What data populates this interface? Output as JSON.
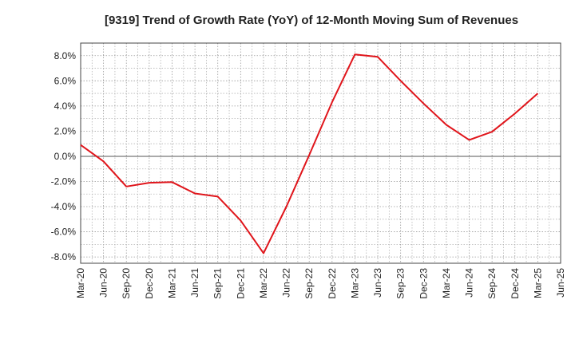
{
  "chart_data": {
    "type": "line",
    "title": "[9319]  Trend of Growth Rate (YoY) of 12-Month Moving Sum of Revenues",
    "xlabel": "",
    "ylabel": "",
    "categories": [
      "Mar-20",
      "Jun-20",
      "Sep-20",
      "Dec-20",
      "Mar-21",
      "Jun-21",
      "Sep-21",
      "Dec-21",
      "Mar-22",
      "Jun-22",
      "Sep-22",
      "Dec-22",
      "Mar-23",
      "Jun-23",
      "Sep-23",
      "Dec-23",
      "Mar-24",
      "Jun-24",
      "Sep-24",
      "Dec-24",
      "Mar-25",
      "Jun-25"
    ],
    "y_tick_values": [
      -8,
      -6,
      -4,
      -2,
      0,
      2,
      4,
      6,
      8
    ],
    "y_tick_labels": [
      "-8.0%",
      "-6.0%",
      "-4.0%",
      "-2.0%",
      "0.0%",
      "2.0%",
      "4.0%",
      "6.0%",
      "8.0%"
    ],
    "ylim": [
      -8.5,
      9.0
    ],
    "grid": true,
    "series": [
      {
        "color": "#e0151b",
        "values": [
          0.9,
          -0.4,
          -2.4,
          -2.1,
          -2.05,
          -2.95,
          -3.2,
          -5.1,
          -7.7,
          -4.0,
          0.1,
          4.3,
          8.1,
          7.9,
          6.0,
          4.2,
          2.5,
          1.3,
          1.95,
          3.4,
          5.0,
          null
        ]
      }
    ]
  }
}
